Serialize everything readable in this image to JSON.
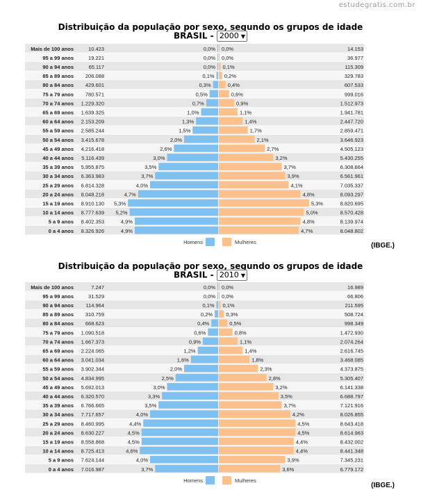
{
  "watermark": "estudegratis.com.br",
  "legend": {
    "men": "Homens",
    "women": "Mulheres"
  },
  "colors": {
    "men": "#7ec0f0",
    "women": "#fbc08c",
    "row_odd": "#e6e6e6",
    "row_even": "#f6f6f6"
  },
  "source": "(IBGE.)",
  "charts": [
    {
      "title": "Distribuição da população por sexo, segundo os grupos de idade",
      "country": "BRASIL -",
      "year": "2000",
      "chart_data": {
        "type": "bar",
        "categories": [
          "Mais de 100 anos",
          "95 a 99 anos",
          "90 a 94 anos",
          "85 a 89 anos",
          "80 a 84 anos",
          "75 a 79 anos",
          "70 a 74 anos",
          "65 a 69 anos",
          "60 a 64 anos",
          "55 a 59 anos",
          "50 a 54 anos",
          "45 a 49 anos",
          "40 a 44 anos",
          "35 a 39 anos",
          "30 a 34 anos",
          "25 a 29 anos",
          "20 a 24 anos",
          "15 a 19 anos",
          "10 a 14 anos",
          "5 a 9 anos",
          "0 a 4 anos"
        ],
        "series": [
          {
            "name": "Homens",
            "counts": [
              "10.423",
              "19.221",
              "65.117",
              "206.088",
              "429.601",
              "780.571",
              "1.229.320",
              "1.639.325",
              "2.153.209",
              "2.585.244",
              "3.415.678",
              "4.216.418",
              "5.116.439",
              "5.955.875",
              "6.363.983",
              "6.814.328",
              "8.048.218",
              "8.910.130",
              "8.777.639",
              "8.402.353",
              "8.326.926"
            ],
            "percents": [
              "0,0%",
              "0,0%",
              "0,0%",
              "0,1%",
              "0,3%",
              "0,5%",
              "0,7%",
              "1,0%",
              "1,3%",
              "1,5%",
              "2,0%",
              "2,6%",
              "3,0%",
              "3,5%",
              "3,7%",
              "4,0%",
              "4,7%",
              "5,3%",
              "5,2%",
              "4,9%",
              "4,9%"
            ],
            "values": [
              0.0,
              0.0,
              0.0,
              0.1,
              0.3,
              0.5,
              0.7,
              1.0,
              1.3,
              1.5,
              2.0,
              2.6,
              3.0,
              3.5,
              3.7,
              4.0,
              4.7,
              5.3,
              5.2,
              4.9,
              4.9
            ]
          },
          {
            "name": "Mulheres",
            "counts": [
              "14.153",
              "36.977",
              "115.309",
              "329.783",
              "607.533",
              "999.016",
              "1.512.973",
              "1.941.781",
              "2.447.720",
              "2.859.471",
              "3.646.923",
              "4.505.123",
              "5.430.255",
              "6.308.664",
              "6.561.961",
              "7.035.337",
              "8.093.297",
              "8.820.695",
              "8.570.428",
              "8.139.974",
              "8.048.802"
            ],
            "percents": [
              "0,0%",
              "0,0%",
              "0,1%",
              "0,2%",
              "0,4%",
              "0,6%",
              "0,9%",
              "1,1%",
              "1,4%",
              "1,7%",
              "2,1%",
              "2,7%",
              "3,2%",
              "3,7%",
              "3,9%",
              "4,1%",
              "4,8%",
              "5,3%",
              "5,0%",
              "4,8%",
              "4,7%"
            ],
            "values": [
              0.0,
              0.0,
              0.1,
              0.2,
              0.4,
              0.6,
              0.9,
              1.1,
              1.4,
              1.7,
              2.1,
              2.7,
              3.2,
              3.7,
              3.9,
              4.1,
              4.8,
              5.3,
              5.0,
              4.8,
              4.7
            ]
          }
        ]
      }
    },
    {
      "title": "Distribuição da população por sexo, segundo os grupos de idade",
      "country": "BRASIL -",
      "year": "2010",
      "chart_data": {
        "type": "bar",
        "categories": [
          "Mais de 100 anos",
          "95 a 99 anos",
          "90 a 94 anos",
          "85 a 89 anos",
          "80 a 84 anos",
          "75 a 79 anos",
          "70 a 74 anos",
          "65 a 69 anos",
          "60 a 64 anos",
          "55 a 59 anos",
          "50 a 54 anos",
          "45 a 49 anos",
          "40 a 44 anos",
          "35 a 39 anos",
          "30 a 34 anos",
          "25 a 29 anos",
          "20 a 24 anos",
          "15 a 19 anos",
          "10 a 14 anos",
          "5 a 9 anos",
          "0 a 4 anos"
        ],
        "series": [
          {
            "name": "Homens",
            "counts": [
              "7.247",
              "31.529",
              "114.964",
              "310.759",
              "668.623",
              "1.090.518",
              "1.667.373",
              "2.224.065",
              "3.041.034",
              "3.902.344",
              "4.834.995",
              "5.692.013",
              "6.320.570",
              "6.766.665",
              "7.717.657",
              "8.460.995",
              "8.630.227",
              "8.558.868",
              "8.725.413",
              "7.624.144",
              "7.016.987"
            ],
            "percents": [
              "0,0%",
              "0,0%",
              "0,1%",
              "0,2%",
              "0,4%",
              "0,6%",
              "0,9%",
              "1,2%",
              "1,6%",
              "2,0%",
              "2,5%",
              "3,0%",
              "3,3%",
              "3,5%",
              "4,0%",
              "4,4%",
              "4,5%",
              "4,5%",
              "4,6%",
              "4,0%",
              "3,7%"
            ],
            "values": [
              0.0,
              0.0,
              0.1,
              0.2,
              0.4,
              0.6,
              0.9,
              1.2,
              1.6,
              2.0,
              2.5,
              3.0,
              3.3,
              3.5,
              4.0,
              4.4,
              4.5,
              4.5,
              4.6,
              4.0,
              3.7
            ]
          },
          {
            "name": "Mulheres",
            "counts": [
              "16.989",
              "66.806",
              "211.595",
              "508.724",
              "998.349",
              "1.472.930",
              "2.074.264",
              "2.616.745",
              "3.468.085",
              "4.373.875",
              "5.305.407",
              "6.141.338",
              "6.688.797",
              "7.121.916",
              "8.026.855",
              "8.643.418",
              "8.614.963",
              "8.432.002",
              "8.441.348",
              "7.345.231",
              "6.779.172"
            ],
            "percents": [
              "0,0%",
              "0,0%",
              "0,1%",
              "0,3%",
              "0,5%",
              "0,8%",
              "1,1%",
              "1,4%",
              "1,8%",
              "2,3%",
              "2,8%",
              "3,2%",
              "3,5%",
              "3,7%",
              "4,2%",
              "4,5%",
              "4,5%",
              "4,4%",
              "4,4%",
              "3,9%",
              "3,6%"
            ],
            "values": [
              0.0,
              0.0,
              0.1,
              0.3,
              0.5,
              0.8,
              1.1,
              1.4,
              1.8,
              2.3,
              2.8,
              3.2,
              3.5,
              3.7,
              4.2,
              4.5,
              4.5,
              4.4,
              4.4,
              3.9,
              3.6
            ]
          }
        ]
      }
    }
  ]
}
